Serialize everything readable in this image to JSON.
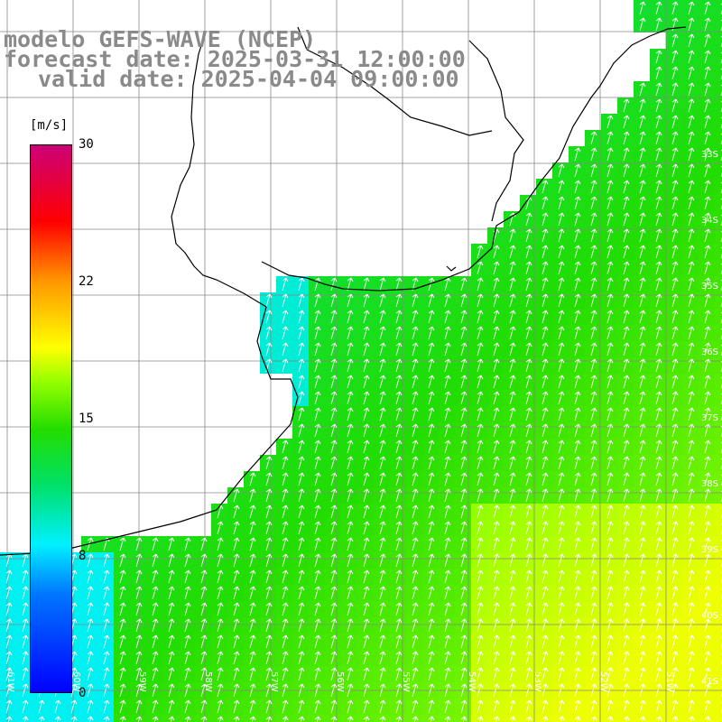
{
  "title": {
    "line1": "modelo GEFS-WAVE (NCEP)",
    "line2": "forecast date: 2025-03-31 12:00:00",
    "line3": "valid date: 2025-04-04 09:00:00"
  },
  "colorbar": {
    "unit": "[m/s]",
    "ticks": [
      "30",
      "22",
      "15",
      "8",
      "0"
    ],
    "range": [
      0,
      30
    ],
    "colors": [
      "#0000ff",
      "#0077ff",
      "#00f0ff",
      "#00e066",
      "#22dd00",
      "#99ff00",
      "#ffff00",
      "#ff9900",
      "#ff0000",
      "#cc0077"
    ]
  },
  "lat_labels": [
    "33S",
    "34S",
    "35S",
    "36S",
    "37S",
    "38S",
    "39S",
    "40S",
    "41S"
  ],
  "lon_labels": [
    "61W",
    "60W",
    "59W",
    "58W",
    "57W",
    "56W",
    "55W",
    "54W",
    "53W",
    "52W",
    "51W"
  ],
  "field": {
    "variable": "wind speed",
    "land_color": "#ffffff",
    "coast_color": "#000000",
    "grid_color": "#888888",
    "arrow_color": "#ffffff",
    "arrow_direction": "north-northeast"
  }
}
